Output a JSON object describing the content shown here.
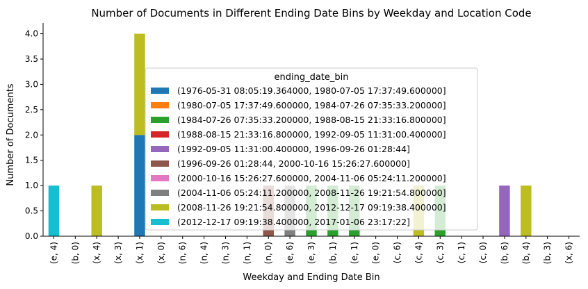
{
  "chart_data": {
    "type": "bar",
    "stacked": true,
    "title": "Number of Documents in Different Ending Date Bins by Weekday and Location Code",
    "xlabel": "Weekday and Ending Date Bin",
    "ylabel": "Number of Documents",
    "ylim": [
      0,
      4.2
    ],
    "yticks": [
      "0.0",
      "0.5",
      "1.0",
      "1.5",
      "2.0",
      "2.5",
      "3.0",
      "3.5",
      "4.0"
    ],
    "ytick_values": [
      0,
      0.5,
      1.0,
      1.5,
      2.0,
      2.5,
      3.0,
      3.5,
      4.0
    ],
    "categories": [
      "(e, 4)",
      "(b, 0)",
      "(x, 4)",
      "(x, 3)",
      "(x, 1)",
      "(x, 0)",
      "(n, 6)",
      "(n, 4)",
      "(n, 3)",
      "(n, 1)",
      "(n, 0)",
      "(e, 6)",
      "(e, 3)",
      "(b, 1)",
      "(e, 1)",
      "(e, 0)",
      "(c, 6)",
      "(c, 4)",
      "(c, 3)",
      "(c, 1)",
      "(c, 0)",
      "(b, 6)",
      "(b, 4)",
      "(b, 3)",
      "(x, 6)"
    ],
    "grid": false,
    "legend": {
      "title": "ending_date_bin",
      "placement": "center"
    },
    "series": [
      {
        "name": "(1976-05-31 08:05:19.364000, 1980-07-05 17:37:49.600000]",
        "color": "#1f77b4",
        "values": [
          0,
          0,
          0,
          0,
          2,
          0,
          0,
          0,
          0,
          0,
          0,
          0,
          0,
          0,
          0,
          0,
          0,
          0,
          0,
          0,
          0,
          0,
          0,
          0,
          0
        ]
      },
      {
        "name": "(1980-07-05 17:37:49.600000, 1984-07-26 07:35:33.200000]",
        "color": "#ff7f0e",
        "values": [
          0,
          0,
          0,
          0,
          0,
          0,
          0,
          0,
          0,
          0,
          0,
          0,
          0,
          0,
          0,
          0,
          0,
          0,
          0,
          0,
          0,
          0,
          0,
          0,
          0
        ]
      },
      {
        "name": "(1984-07-26 07:35:33.200000, 1988-08-15 21:33:16.800000]",
        "color": "#2ca02c",
        "values": [
          0,
          0,
          0,
          0,
          0,
          0,
          0,
          0,
          0,
          0,
          0,
          0,
          1,
          1,
          1,
          0,
          0,
          0,
          1,
          0,
          0,
          0,
          0,
          0,
          0
        ]
      },
      {
        "name": "(1988-08-15 21:33:16.800000, 1992-09-05 11:31:00.400000]",
        "color": "#d62728",
        "values": [
          0,
          0,
          0,
          0,
          0,
          0,
          0,
          0,
          0,
          0,
          0,
          0,
          0,
          0,
          0,
          0,
          0,
          0,
          0,
          0,
          0,
          0,
          0,
          0,
          0
        ]
      },
      {
        "name": "(1992-09-05 11:31:00.400000, 1996-09-26 01:28:44]",
        "color": "#9467bd",
        "values": [
          0,
          0,
          0,
          0,
          0,
          0,
          0,
          0,
          0,
          0,
          0,
          0,
          0,
          0,
          0,
          0,
          0,
          0,
          0,
          0,
          0,
          1,
          0,
          0,
          0
        ]
      },
      {
        "name": "(1996-09-26 01:28:44, 2000-10-16 15:26:27.600000]",
        "color": "#8c564b",
        "values": [
          0,
          0,
          0,
          0,
          0,
          0,
          0,
          0,
          0,
          0,
          1,
          0,
          0,
          0,
          0,
          0,
          0,
          0,
          0,
          0,
          0,
          0,
          0,
          0,
          0
        ]
      },
      {
        "name": "(2000-10-16 15:26:27.600000, 2004-11-06 05:24:11.200000]",
        "color": "#e377c2",
        "values": [
          0,
          0,
          0,
          0,
          0,
          0,
          0,
          0,
          0,
          0,
          0,
          0,
          0,
          0,
          0,
          0,
          0,
          0,
          0,
          0,
          0,
          0,
          0,
          0,
          0
        ]
      },
      {
        "name": "(2004-11-06 05:24:11.200000, 2008-11-26 19:21:54.800000]",
        "color": "#7f7f7f",
        "values": [
          0,
          0,
          0,
          0,
          0,
          0,
          0,
          0,
          0,
          0,
          0,
          1,
          0,
          0,
          0,
          0,
          0,
          0,
          0,
          0,
          0,
          0,
          0,
          0,
          0
        ]
      },
      {
        "name": "(2008-11-26 19:21:54.800000, 2012-12-17 09:19:38.400000]",
        "color": "#bcbd22",
        "values": [
          0,
          0,
          1,
          0,
          2,
          0,
          0,
          0,
          0,
          0,
          0,
          0,
          0,
          0,
          0,
          0,
          0,
          1,
          0,
          0,
          0,
          0,
          1,
          0,
          0
        ]
      },
      {
        "name": "(2012-12-17 09:19:38.400000, 2017-01-06 23:17:22]",
        "color": "#17becf",
        "values": [
          1,
          0,
          0,
          0,
          0,
          0,
          0,
          0,
          0,
          0,
          0,
          0,
          0,
          0,
          0,
          0,
          0,
          0,
          0,
          0,
          0,
          0,
          0,
          0,
          0
        ]
      }
    ]
  }
}
